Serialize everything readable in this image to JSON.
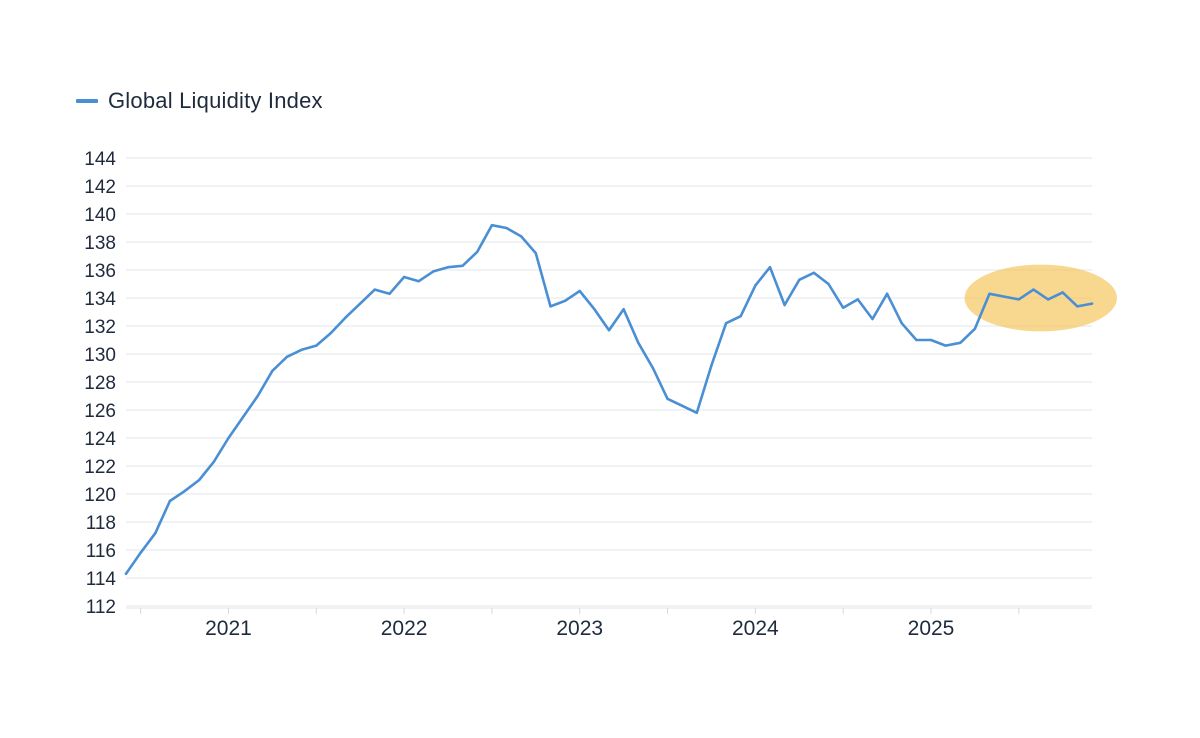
{
  "chart_data": {
    "type": "line",
    "title": "",
    "xlabel": "",
    "ylabel": "",
    "ylim": [
      112,
      144
    ],
    "xlim": [
      "2020-06",
      "2025-12"
    ],
    "y_ticks": [
      144,
      142,
      140,
      138,
      136,
      134,
      132,
      130,
      128,
      126,
      124,
      122,
      120,
      118,
      116,
      114,
      112
    ],
    "x_ticks": [
      "2021",
      "2022",
      "2023",
      "2024",
      "2025"
    ],
    "grid": "horizontal",
    "legend": "top-left",
    "highlight": {
      "shape": "ellipse",
      "color": "#f5c96a",
      "covers": "2025 rise"
    },
    "series": [
      {
        "name": "Global Liquidity Index",
        "color": "#4a8fd4",
        "points": [
          [
            "2020-06",
            114.3
          ],
          [
            "2020-07",
            115.8
          ],
          [
            "2020-08",
            117.2
          ],
          [
            "2020-09",
            119.5
          ],
          [
            "2020-10",
            120.2
          ],
          [
            "2020-11",
            121.0
          ],
          [
            "2020-12",
            122.3
          ],
          [
            "2021-01",
            124.0
          ],
          [
            "2021-02",
            125.5
          ],
          [
            "2021-03",
            127.0
          ],
          [
            "2021-04",
            128.8
          ],
          [
            "2021-05",
            129.8
          ],
          [
            "2021-06",
            130.3
          ],
          [
            "2021-07",
            130.6
          ],
          [
            "2021-08",
            131.5
          ],
          [
            "2021-09",
            132.6
          ],
          [
            "2021-10",
            133.6
          ],
          [
            "2021-11",
            134.6
          ],
          [
            "2021-12",
            134.3
          ],
          [
            "2022-01",
            135.5
          ],
          [
            "2022-02",
            135.2
          ],
          [
            "2022-03",
            135.9
          ],
          [
            "2022-04",
            136.2
          ],
          [
            "2022-05",
            136.3
          ],
          [
            "2022-06",
            137.3
          ],
          [
            "2022-07",
            139.2
          ],
          [
            "2022-08",
            139.0
          ],
          [
            "2022-09",
            138.4
          ],
          [
            "2022-10",
            137.2
          ],
          [
            "2022-11",
            133.4
          ],
          [
            "2022-12",
            133.8
          ],
          [
            "2023-01",
            134.5
          ],
          [
            "2023-02",
            133.2
          ],
          [
            "2023-03",
            131.7
          ],
          [
            "2023-04",
            133.2
          ],
          [
            "2023-05",
            130.8
          ],
          [
            "2023-06",
            129.0
          ],
          [
            "2023-07",
            126.8
          ],
          [
            "2023-08",
            126.3
          ],
          [
            "2023-09",
            125.8
          ],
          [
            "2023-10",
            129.2
          ],
          [
            "2023-11",
            132.2
          ],
          [
            "2023-12",
            132.7
          ],
          [
            "2024-01",
            134.9
          ],
          [
            "2024-02",
            136.2
          ],
          [
            "2024-03",
            133.5
          ],
          [
            "2024-04",
            135.3
          ],
          [
            "2024-05",
            135.8
          ],
          [
            "2024-06",
            135.0
          ],
          [
            "2024-07",
            133.3
          ],
          [
            "2024-08",
            133.9
          ],
          [
            "2024-09",
            132.5
          ],
          [
            "2024-10",
            134.3
          ],
          [
            "2024-11",
            132.2
          ],
          [
            "2024-12",
            131.0
          ],
          [
            "2025-01",
            131.0
          ],
          [
            "2025-02",
            130.6
          ],
          [
            "2025-03",
            130.8
          ],
          [
            "2025-04",
            131.8
          ],
          [
            "2025-05",
            134.3
          ],
          [
            "2025-06",
            134.1
          ],
          [
            "2025-07",
            133.9
          ],
          [
            "2025-08",
            134.6
          ],
          [
            "2025-09",
            133.9
          ],
          [
            "2025-10",
            134.4
          ],
          [
            "2025-11",
            133.4
          ],
          [
            "2025-12",
            133.6
          ]
        ]
      }
    ]
  }
}
